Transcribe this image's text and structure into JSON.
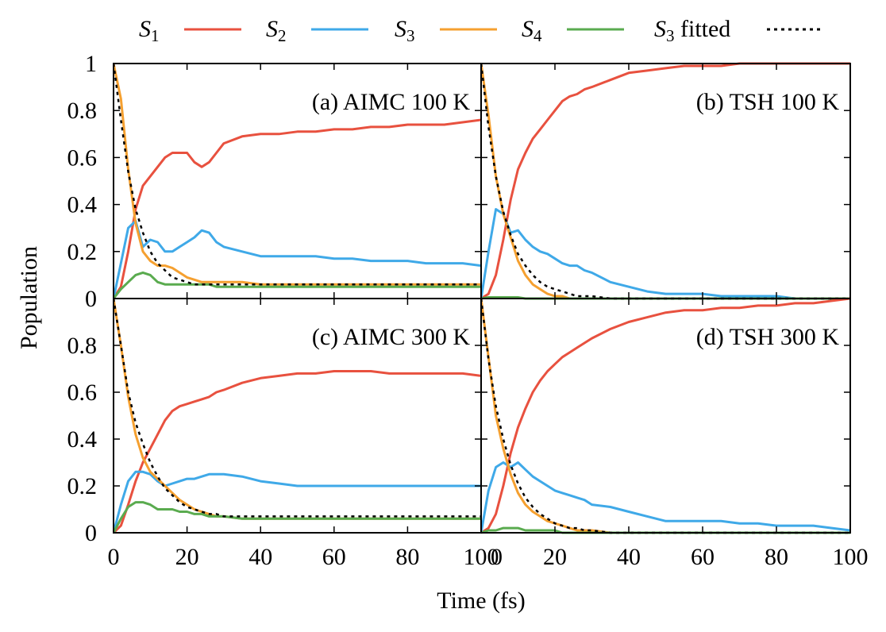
{
  "colors": {
    "S1": "#e8513f",
    "S2": "#3fa9e8",
    "S4": "#f5a030",
    "S3": "#5aab4f",
    "fit": "#000000"
  },
  "legend": {
    "entries": [
      {
        "key": "S1",
        "base": "S",
        "sub": "1",
        "suffix": ""
      },
      {
        "key": "S2",
        "base": "S",
        "sub": "2",
        "suffix": ""
      },
      {
        "key": "S4",
        "base": "S",
        "sub": "3",
        "suffix": ""
      },
      {
        "key": "S3",
        "base": "S",
        "sub": "4",
        "suffix": ""
      },
      {
        "key": "fit",
        "base": "S",
        "sub": "3",
        "suffix": " fitted"
      }
    ]
  },
  "axes": {
    "xlabel": "Time (fs)",
    "ylabel": "Population",
    "x_ticks": [
      "0",
      "20",
      "40",
      "60",
      "80",
      "100"
    ],
    "y_ticks_top": [
      "0",
      "0.2",
      "0.4",
      "0.6",
      "0.8",
      "1"
    ],
    "y_ticks_bottom": [
      "0",
      "0.2",
      "0.4",
      "0.6",
      "0.8"
    ]
  },
  "chart_data": [
    {
      "type": "line",
      "panel_label": "(a) AIMC 100 K",
      "xlim": [
        0,
        100
      ],
      "ylim": [
        0,
        1
      ],
      "x": [
        0,
        2,
        4,
        6,
        8,
        10,
        12,
        14,
        16,
        18,
        20,
        22,
        24,
        26,
        28,
        30,
        35,
        40,
        45,
        50,
        55,
        60,
        65,
        70,
        75,
        80,
        85,
        90,
        95,
        100
      ],
      "series": [
        {
          "key": "S1",
          "values": [
            0,
            0.05,
            0.2,
            0.38,
            0.48,
            0.52,
            0.56,
            0.6,
            0.62,
            0.62,
            0.62,
            0.58,
            0.56,
            0.58,
            0.62,
            0.66,
            0.69,
            0.7,
            0.7,
            0.71,
            0.71,
            0.72,
            0.72,
            0.73,
            0.73,
            0.74,
            0.74,
            0.74,
            0.75,
            0.76
          ]
        },
        {
          "key": "S2",
          "values": [
            0,
            0.15,
            0.3,
            0.33,
            0.22,
            0.25,
            0.24,
            0.2,
            0.2,
            0.22,
            0.24,
            0.26,
            0.29,
            0.28,
            0.24,
            0.22,
            0.2,
            0.18,
            0.18,
            0.18,
            0.18,
            0.17,
            0.17,
            0.16,
            0.16,
            0.16,
            0.15,
            0.15,
            0.15,
            0.14
          ]
        },
        {
          "key": "S4",
          "values": [
            1,
            0.85,
            0.55,
            0.32,
            0.2,
            0.16,
            0.14,
            0.14,
            0.13,
            0.11,
            0.09,
            0.08,
            0.07,
            0.07,
            0.07,
            0.07,
            0.07,
            0.06,
            0.06,
            0.06,
            0.06,
            0.06,
            0.06,
            0.06,
            0.06,
            0.06,
            0.06,
            0.06,
            0.06,
            0.06
          ]
        },
        {
          "key": "S3",
          "values": [
            0,
            0.04,
            0.07,
            0.1,
            0.11,
            0.1,
            0.07,
            0.06,
            0.06,
            0.06,
            0.06,
            0.06,
            0.06,
            0.06,
            0.05,
            0.05,
            0.05,
            0.05,
            0.05,
            0.05,
            0.05,
            0.05,
            0.05,
            0.05,
            0.05,
            0.05,
            0.05,
            0.05,
            0.05,
            0.05
          ]
        },
        {
          "key": "fit",
          "values": [
            1,
            0.76,
            0.54,
            0.38,
            0.28,
            0.2,
            0.15,
            0.12,
            0.09,
            0.08,
            0.07,
            0.06,
            0.06,
            0.06,
            0.06,
            0.06,
            0.06,
            0.06,
            0.06,
            0.06,
            0.06,
            0.06,
            0.06,
            0.06,
            0.06,
            0.06,
            0.06,
            0.06,
            0.06,
            0.06
          ]
        }
      ]
    },
    {
      "type": "line",
      "panel_label": "(b) TSH 100 K",
      "xlim": [
        0,
        100
      ],
      "ylim": [
        0,
        1
      ],
      "x": [
        0,
        2,
        4,
        6,
        8,
        10,
        12,
        14,
        16,
        18,
        20,
        22,
        24,
        26,
        28,
        30,
        35,
        40,
        45,
        50,
        55,
        60,
        65,
        70,
        75,
        80,
        85,
        90,
        95,
        100
      ],
      "series": [
        {
          "key": "S1",
          "values": [
            0,
            0.02,
            0.1,
            0.25,
            0.42,
            0.55,
            0.62,
            0.68,
            0.72,
            0.76,
            0.8,
            0.84,
            0.86,
            0.87,
            0.89,
            0.9,
            0.93,
            0.96,
            0.97,
            0.98,
            0.99,
            0.99,
            0.99,
            1,
            1,
            1,
            1,
            1,
            1,
            1
          ]
        },
        {
          "key": "S2",
          "values": [
            0,
            0.2,
            0.38,
            0.36,
            0.28,
            0.29,
            0.25,
            0.22,
            0.2,
            0.19,
            0.17,
            0.15,
            0.14,
            0.14,
            0.12,
            0.11,
            0.07,
            0.05,
            0.03,
            0.02,
            0.02,
            0.02,
            0.01,
            0.01,
            0.01,
            0.01,
            0,
            0,
            0,
            0
          ]
        },
        {
          "key": "S4",
          "values": [
            1,
            0.78,
            0.52,
            0.36,
            0.26,
            0.16,
            0.1,
            0.06,
            0.04,
            0.02,
            0.01,
            0.01,
            0,
            0,
            0,
            0,
            0,
            0,
            0,
            0,
            0,
            0,
            0,
            0,
            0,
            0,
            0,
            0,
            0,
            0
          ]
        },
        {
          "key": "S3",
          "values": [
            0,
            0.005,
            0.005,
            0.005,
            0.005,
            0.005,
            0,
            0,
            0,
            0,
            0,
            0,
            0,
            0,
            0,
            0,
            0,
            0,
            0,
            0,
            0,
            0,
            0,
            0,
            0,
            0,
            0,
            0,
            0,
            0
          ]
        },
        {
          "key": "fit",
          "values": [
            1,
            0.73,
            0.52,
            0.37,
            0.27,
            0.19,
            0.14,
            0.1,
            0.07,
            0.05,
            0.04,
            0.03,
            0.02,
            0.01,
            0.01,
            0.01,
            0,
            0,
            0,
            0,
            0,
            0,
            0,
            0,
            0,
            0,
            0,
            0,
            0,
            0
          ]
        }
      ]
    },
    {
      "type": "line",
      "panel_label": "(c) AIMC 300 K",
      "xlim": [
        0,
        100
      ],
      "ylim": [
        0,
        1
      ],
      "x": [
        0,
        2,
        4,
        6,
        8,
        10,
        12,
        14,
        16,
        18,
        20,
        22,
        24,
        26,
        28,
        30,
        35,
        40,
        45,
        50,
        55,
        60,
        65,
        70,
        75,
        80,
        85,
        90,
        95,
        100
      ],
      "series": [
        {
          "key": "S1",
          "values": [
            0,
            0.03,
            0.12,
            0.22,
            0.3,
            0.36,
            0.42,
            0.48,
            0.52,
            0.54,
            0.55,
            0.56,
            0.57,
            0.58,
            0.6,
            0.61,
            0.64,
            0.66,
            0.67,
            0.68,
            0.68,
            0.69,
            0.69,
            0.69,
            0.68,
            0.68,
            0.68,
            0.68,
            0.68,
            0.67
          ]
        },
        {
          "key": "S2",
          "values": [
            0,
            0.12,
            0.22,
            0.26,
            0.26,
            0.25,
            0.22,
            0.2,
            0.21,
            0.22,
            0.23,
            0.23,
            0.24,
            0.25,
            0.25,
            0.25,
            0.24,
            0.22,
            0.21,
            0.2,
            0.2,
            0.2,
            0.2,
            0.2,
            0.2,
            0.2,
            0.2,
            0.2,
            0.2,
            0.2
          ]
        },
        {
          "key": "S4",
          "values": [
            1,
            0.8,
            0.58,
            0.42,
            0.32,
            0.26,
            0.23,
            0.2,
            0.17,
            0.14,
            0.12,
            0.1,
            0.09,
            0.08,
            0.07,
            0.07,
            0.06,
            0.06,
            0.06,
            0.06,
            0.06,
            0.06,
            0.06,
            0.06,
            0.06,
            0.06,
            0.06,
            0.06,
            0.06,
            0.06
          ]
        },
        {
          "key": "S3",
          "values": [
            0,
            0.06,
            0.11,
            0.13,
            0.13,
            0.12,
            0.1,
            0.1,
            0.1,
            0.09,
            0.09,
            0.08,
            0.08,
            0.07,
            0.07,
            0.07,
            0.06,
            0.06,
            0.06,
            0.06,
            0.06,
            0.06,
            0.06,
            0.06,
            0.06,
            0.06,
            0.06,
            0.06,
            0.06,
            0.06
          ]
        },
        {
          "key": "fit",
          "values": [
            1,
            0.8,
            0.6,
            0.47,
            0.38,
            0.3,
            0.24,
            0.19,
            0.16,
            0.13,
            0.11,
            0.1,
            0.09,
            0.08,
            0.08,
            0.07,
            0.07,
            0.07,
            0.07,
            0.07,
            0.07,
            0.07,
            0.07,
            0.07,
            0.07,
            0.07,
            0.07,
            0.07,
            0.07,
            0.07
          ]
        }
      ]
    },
    {
      "type": "line",
      "panel_label": "(d) TSH 300 K",
      "xlim": [
        0,
        100
      ],
      "ylim": [
        0,
        1
      ],
      "x": [
        0,
        2,
        4,
        6,
        8,
        10,
        12,
        14,
        16,
        18,
        20,
        22,
        24,
        26,
        28,
        30,
        35,
        40,
        45,
        50,
        55,
        60,
        65,
        70,
        75,
        80,
        85,
        90,
        95,
        100
      ],
      "series": [
        {
          "key": "S1",
          "values": [
            0,
            0.02,
            0.08,
            0.2,
            0.34,
            0.45,
            0.53,
            0.6,
            0.65,
            0.69,
            0.72,
            0.75,
            0.77,
            0.79,
            0.81,
            0.83,
            0.87,
            0.9,
            0.92,
            0.94,
            0.95,
            0.95,
            0.96,
            0.96,
            0.97,
            0.97,
            0.98,
            0.98,
            0.99,
            1.0
          ]
        },
        {
          "key": "S2",
          "values": [
            0,
            0.18,
            0.28,
            0.3,
            0.28,
            0.3,
            0.27,
            0.24,
            0.22,
            0.2,
            0.18,
            0.17,
            0.16,
            0.15,
            0.14,
            0.12,
            0.11,
            0.09,
            0.07,
            0.05,
            0.05,
            0.05,
            0.05,
            0.04,
            0.04,
            0.03,
            0.03,
            0.03,
            0.02,
            0.01
          ]
        },
        {
          "key": "S4",
          "values": [
            1,
            0.75,
            0.5,
            0.36,
            0.25,
            0.17,
            0.12,
            0.09,
            0.07,
            0.05,
            0.04,
            0.03,
            0.02,
            0.01,
            0.01,
            0.01,
            0,
            0,
            0,
            0,
            0,
            0,
            0,
            0,
            0,
            0,
            0,
            0,
            0,
            0
          ]
        },
        {
          "key": "S3",
          "values": [
            0,
            0.01,
            0.01,
            0.02,
            0.02,
            0.02,
            0.01,
            0.01,
            0.01,
            0.01,
            0.01,
            0,
            0,
            0,
            0,
            0,
            0,
            0,
            0,
            0,
            0,
            0,
            0,
            0,
            0,
            0,
            0,
            0,
            0,
            0
          ]
        },
        {
          "key": "fit",
          "values": [
            1,
            0.74,
            0.54,
            0.4,
            0.29,
            0.21,
            0.15,
            0.11,
            0.08,
            0.06,
            0.04,
            0.03,
            0.02,
            0.02,
            0.01,
            0.01,
            0,
            0,
            0,
            0,
            0,
            0,
            0,
            0,
            0,
            0,
            0,
            0,
            0,
            0
          ]
        }
      ]
    }
  ]
}
